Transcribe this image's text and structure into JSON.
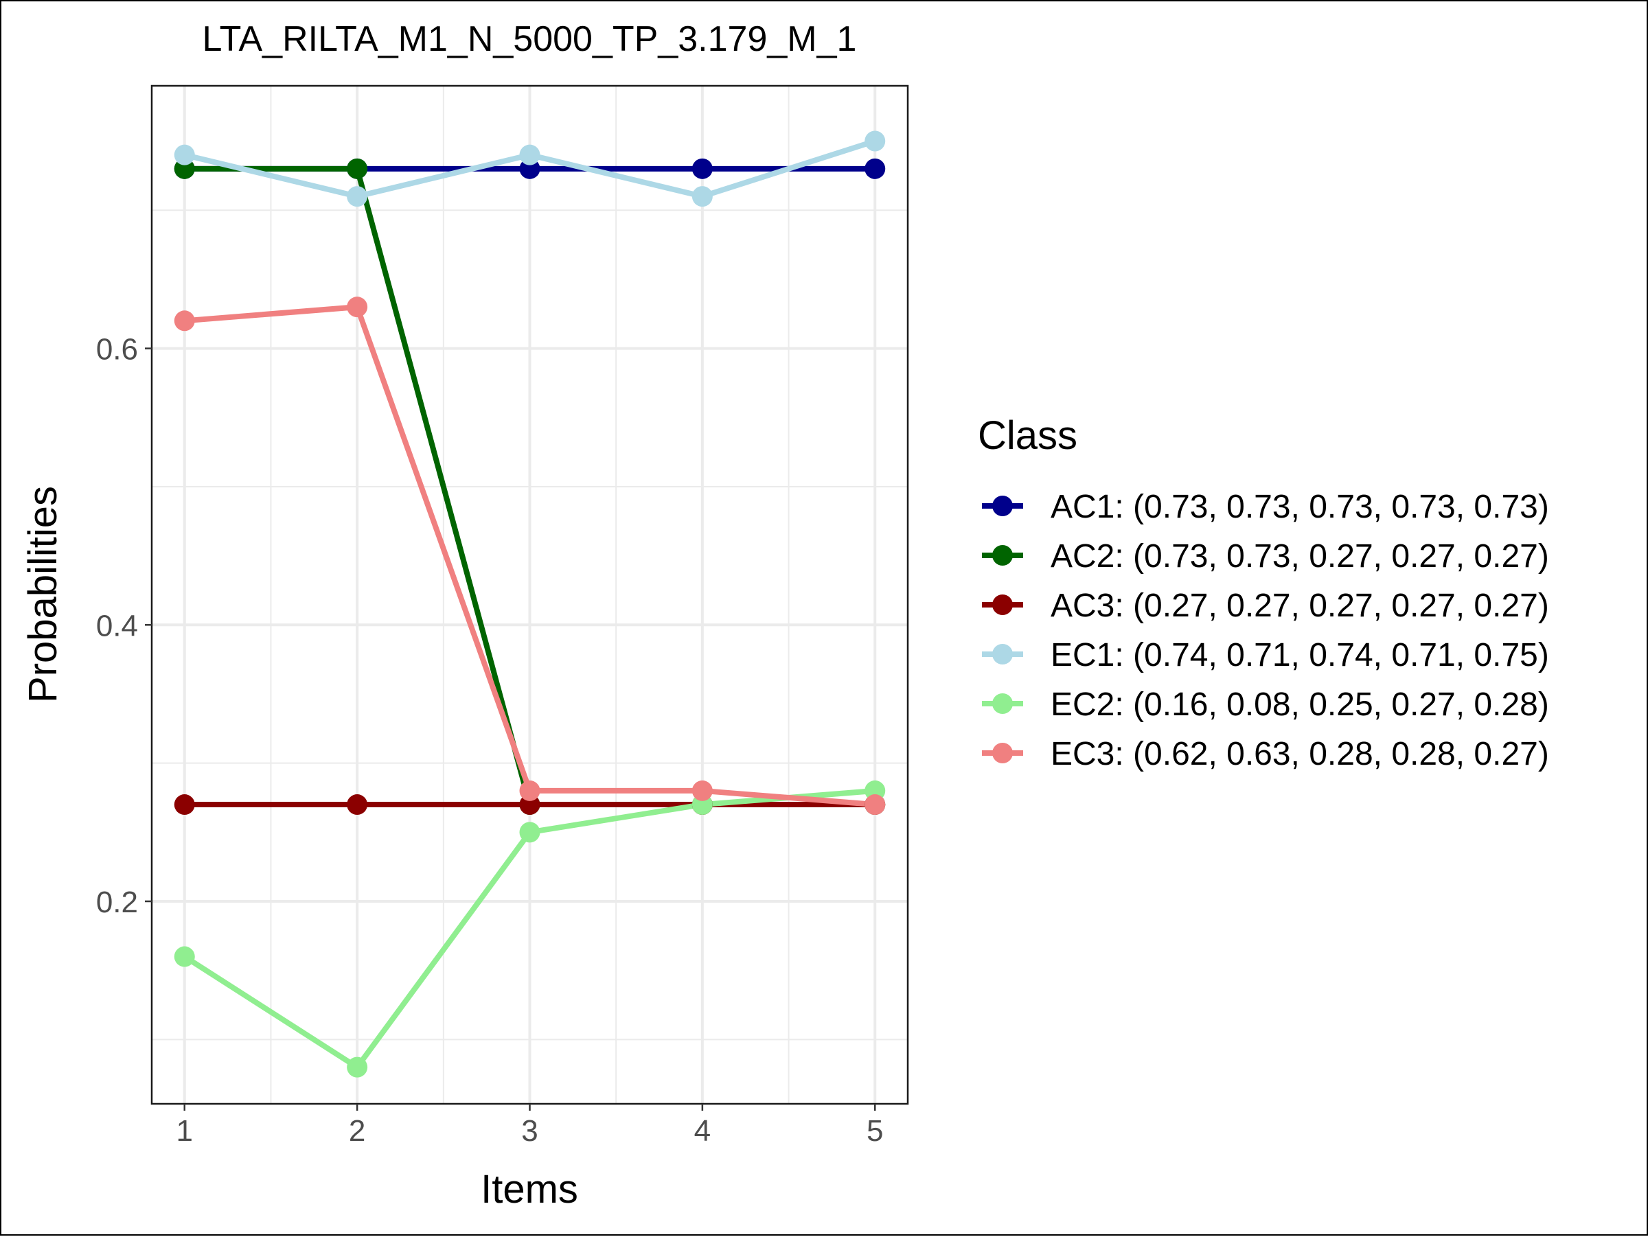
{
  "chart_data": {
    "type": "line",
    "title": "LTA_RILTA_M1_N_5000_TP_3.179_M_1",
    "xlabel": "Items",
    "ylabel": "Probabilities",
    "x": [
      1,
      2,
      3,
      4,
      5
    ],
    "x_tick_labels": [
      "1",
      "2",
      "3",
      "4",
      "5"
    ],
    "xlim": [
      0.81,
      5.19
    ],
    "ylim": [
      0.0535,
      0.79
    ],
    "y_ticks": [
      0.2,
      0.4,
      0.6
    ],
    "y_tick_labels": [
      "0.2",
      "0.4",
      "0.6"
    ],
    "y_minor_ticks": [
      0.1,
      0.3,
      0.5,
      0.7
    ],
    "grid": true,
    "legend_title": "Class",
    "legend_position": "right",
    "series": [
      {
        "name": "AC1",
        "label": "AC1: (0.73, 0.73, 0.73, 0.73, 0.73)",
        "color": "#00008B",
        "values": [
          0.73,
          0.73,
          0.73,
          0.73,
          0.73
        ]
      },
      {
        "name": "AC2",
        "label": "AC2: (0.73, 0.73, 0.27, 0.27, 0.27)",
        "color": "#006400",
        "values": [
          0.73,
          0.73,
          0.27,
          0.27,
          0.27
        ]
      },
      {
        "name": "AC3",
        "label": "AC3: (0.27, 0.27, 0.27, 0.27, 0.27)",
        "color": "#8B0000",
        "values": [
          0.27,
          0.27,
          0.27,
          0.27,
          0.27
        ]
      },
      {
        "name": "EC1",
        "label": "EC1: (0.74, 0.71, 0.74, 0.71, 0.75)",
        "color": "#ADD8E6",
        "values": [
          0.74,
          0.71,
          0.74,
          0.71,
          0.75
        ]
      },
      {
        "name": "EC2",
        "label": "EC2: (0.16, 0.08, 0.25, 0.27, 0.28)",
        "color": "#90EE90",
        "values": [
          0.16,
          0.08,
          0.25,
          0.27,
          0.28
        ]
      },
      {
        "name": "EC3",
        "label": "EC3: (0.62, 0.63, 0.28, 0.28, 0.27)",
        "color": "#F08080",
        "values": [
          0.62,
          0.63,
          0.28,
          0.28,
          0.27
        ]
      }
    ]
  }
}
